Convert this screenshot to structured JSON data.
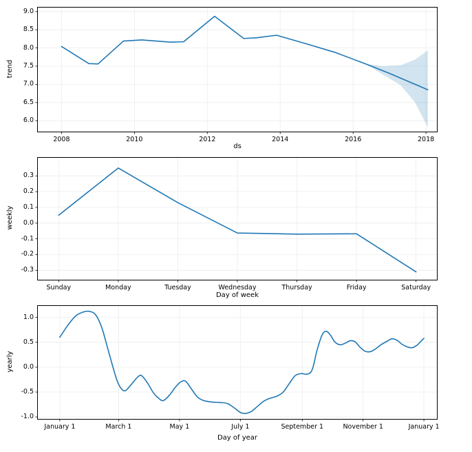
{
  "style": {
    "line_color": "#1f77b4",
    "band_fill": "rgba(31,119,180,0.2)",
    "spine_color": "#000000",
    "grid_color": "#ececec",
    "background": "#ffffff"
  },
  "chart_data": [
    {
      "type": "line",
      "name": "trend",
      "xlabel": "ds",
      "ylabel": "trend",
      "xlim": [
        2007.35,
        2018.3
      ],
      "ylim": [
        5.7,
        9.11
      ],
      "xtick_values": [
        2008,
        2010,
        2012,
        2014,
        2016,
        2018
      ],
      "xtick_labels": [
        "2008",
        "2010",
        "2012",
        "2014",
        "2016",
        "2018"
      ],
      "ytick_values": [
        6.0,
        6.5,
        7.0,
        7.5,
        8.0,
        8.5,
        9.0
      ],
      "ytick_labels": [
        "6.0",
        "6.5",
        "7.0",
        "7.5",
        "8.0",
        "8.5",
        "9.0"
      ],
      "smooth": false,
      "points": [
        [
          2008.0,
          8.04
        ],
        [
          2008.75,
          7.57
        ],
        [
          2009.0,
          7.56
        ],
        [
          2009.7,
          8.19
        ],
        [
          2010.2,
          8.22
        ],
        [
          2011.0,
          8.16
        ],
        [
          2011.35,
          8.17
        ],
        [
          2012.2,
          8.87
        ],
        [
          2013.0,
          8.26
        ],
        [
          2013.35,
          8.28
        ],
        [
          2013.9,
          8.35
        ],
        [
          2014.8,
          8.09
        ],
        [
          2015.5,
          7.88
        ],
        [
          2016.35,
          7.56
        ],
        [
          2017.0,
          7.3
        ],
        [
          2018.05,
          6.85
        ]
      ],
      "uncertainty_band": {
        "x": [
          2016.35,
          2016.8,
          2017.3,
          2017.7,
          2018.05
        ],
        "upper": [
          7.56,
          7.5,
          7.52,
          7.68,
          7.93
        ],
        "lower": [
          7.56,
          7.28,
          6.98,
          6.5,
          5.82
        ]
      }
    },
    {
      "type": "line",
      "name": "weekly",
      "xlabel": "Day of week",
      "ylabel": "weekly",
      "xlim": [
        -0.35,
        6.35
      ],
      "ylim": [
        -0.36,
        0.415
      ],
      "xtick_values": [
        0,
        1,
        2,
        3,
        4,
        5,
        6
      ],
      "xtick_labels": [
        "Sunday",
        "Monday",
        "Tuesday",
        "Wednesday",
        "Thursday",
        "Friday",
        "Saturday"
      ],
      "ytick_values": [
        -0.3,
        -0.2,
        -0.1,
        0.0,
        0.1,
        0.2,
        0.3
      ],
      "ytick_labels": [
        "-0.3",
        "-0.2",
        "-0.1",
        "0.0",
        "0.1",
        "0.2",
        "0.3"
      ],
      "smooth": false,
      "points": [
        [
          0,
          0.05
        ],
        [
          1,
          0.35
        ],
        [
          2,
          0.13
        ],
        [
          3,
          -0.063
        ],
        [
          4,
          -0.07
        ],
        [
          5,
          -0.068
        ],
        [
          6,
          -0.31
        ]
      ]
    },
    {
      "type": "line",
      "name": "yearly",
      "xlabel": "Day of year",
      "ylabel": "yearly",
      "xlim": [
        -22,
        378
      ],
      "ylim": [
        -1.04,
        1.23
      ],
      "xtick_values": [
        0,
        59,
        120,
        181,
        243,
        304,
        365
      ],
      "xtick_labels": [
        "January 1",
        "March 1",
        "May 1",
        "July 1",
        "September 1",
        "November 1",
        "January 1"
      ],
      "ytick_values": [
        -1.0,
        -0.5,
        0.0,
        0.5,
        1.0
      ],
      "ytick_labels": [
        "-1.0",
        "-0.5",
        "0.0",
        "0.5",
        "1.0"
      ],
      "smooth": true,
      "points": [
        [
          0,
          0.6
        ],
        [
          8,
          0.84
        ],
        [
          16,
          1.03
        ],
        [
          24,
          1.11
        ],
        [
          30,
          1.12
        ],
        [
          36,
          1.05
        ],
        [
          42,
          0.8
        ],
        [
          48,
          0.38
        ],
        [
          54,
          -0.05
        ],
        [
          58,
          -0.3
        ],
        [
          62,
          -0.44
        ],
        [
          66,
          -0.47
        ],
        [
          72,
          -0.34
        ],
        [
          78,
          -0.2
        ],
        [
          82,
          -0.17
        ],
        [
          88,
          -0.32
        ],
        [
          94,
          -0.52
        ],
        [
          100,
          -0.64
        ],
        [
          104,
          -0.67
        ],
        [
          110,
          -0.56
        ],
        [
          116,
          -0.4
        ],
        [
          121,
          -0.3
        ],
        [
          126,
          -0.28
        ],
        [
          132,
          -0.44
        ],
        [
          138,
          -0.6
        ],
        [
          144,
          -0.67
        ],
        [
          152,
          -0.7
        ],
        [
          160,
          -0.71
        ],
        [
          168,
          -0.73
        ],
        [
          175,
          -0.82
        ],
        [
          181,
          -0.91
        ],
        [
          186,
          -0.93
        ],
        [
          192,
          -0.89
        ],
        [
          198,
          -0.79
        ],
        [
          204,
          -0.69
        ],
        [
          210,
          -0.63
        ],
        [
          218,
          -0.58
        ],
        [
          224,
          -0.5
        ],
        [
          230,
          -0.33
        ],
        [
          236,
          -0.17
        ],
        [
          242,
          -0.13
        ],
        [
          248,
          -0.14
        ],
        [
          253,
          -0.05
        ],
        [
          258,
          0.35
        ],
        [
          263,
          0.65
        ],
        [
          267,
          0.72
        ],
        [
          271,
          0.65
        ],
        [
          276,
          0.5
        ],
        [
          281,
          0.45
        ],
        [
          286,
          0.48
        ],
        [
          291,
          0.53
        ],
        [
          296,
          0.51
        ],
        [
          301,
          0.4
        ],
        [
          306,
          0.32
        ],
        [
          311,
          0.31
        ],
        [
          316,
          0.36
        ],
        [
          322,
          0.45
        ],
        [
          328,
          0.52
        ],
        [
          333,
          0.57
        ],
        [
          338,
          0.54
        ],
        [
          343,
          0.46
        ],
        [
          348,
          0.41
        ],
        [
          353,
          0.39
        ],
        [
          358,
          0.44
        ],
        [
          362,
          0.52
        ],
        [
          365,
          0.58
        ]
      ]
    }
  ]
}
